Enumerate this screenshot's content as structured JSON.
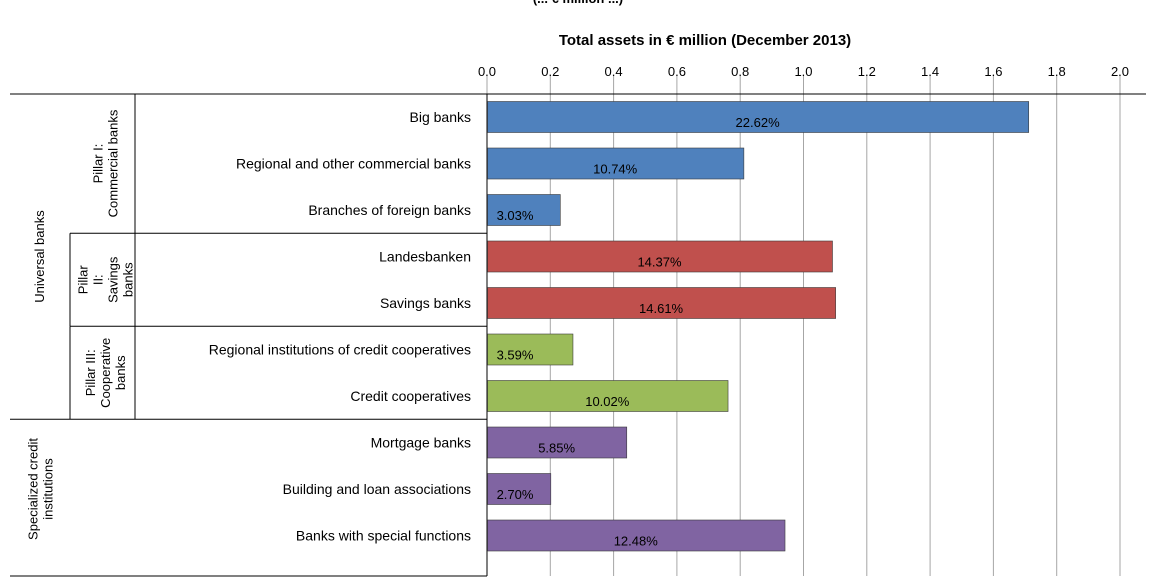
{
  "chart_data": {
    "type": "bar",
    "orientation": "horizontal",
    "title": "Total assets in € million (December 2013)",
    "xlim": [
      0,
      2.0
    ],
    "xticks": [
      "0.0",
      "0.2",
      "0.4",
      "0.6",
      "0.8",
      "1.0",
      "1.2",
      "1.4",
      "1.6",
      "1.8",
      "2.0"
    ],
    "grid": true,
    "categories": [
      "Big banks",
      "Regional and other commercial banks",
      "Branches of foreign banks",
      "Landesbanken",
      "Savings banks",
      "Regional institutions of credit cooperatives",
      "Credit cooperatives",
      "Mortgage banks",
      "Building and loan associations",
      "Banks with special functions"
    ],
    "values": [
      1.71,
      0.81,
      0.23,
      1.09,
      1.1,
      0.27,
      0.76,
      0.44,
      0.2,
      0.94
    ],
    "data_labels": [
      "22.62%",
      "10.74%",
      "3.03%",
      "14.37%",
      "14.61%",
      "3.59%",
      "10.02%",
      "5.85%",
      "2.70%",
      "12.48%"
    ],
    "bar_colors": [
      "#4f81bd",
      "#4f81bd",
      "#4f81bd",
      "#c0504d",
      "#c0504d",
      "#9bbb59",
      "#9bbb59",
      "#8064a2",
      "#8064a2",
      "#8064a2"
    ],
    "groups": [
      {
        "label": "Universal banks",
        "rows": [
          0,
          9
        ]
      },
      {
        "label": "Specialized credit institutions",
        "rows": [
          7,
          9
        ]
      }
    ],
    "subgroups": [
      {
        "label": "Pillar I: Commercial banks",
        "rows": [
          0,
          2
        ]
      },
      {
        "label": "Pillar II: Savings banks",
        "rows": [
          3,
          4
        ]
      },
      {
        "label": "Pillar III: Cooperative banks",
        "rows": [
          5,
          6
        ]
      }
    ],
    "top_partial_text": "(... € million ...)"
  }
}
